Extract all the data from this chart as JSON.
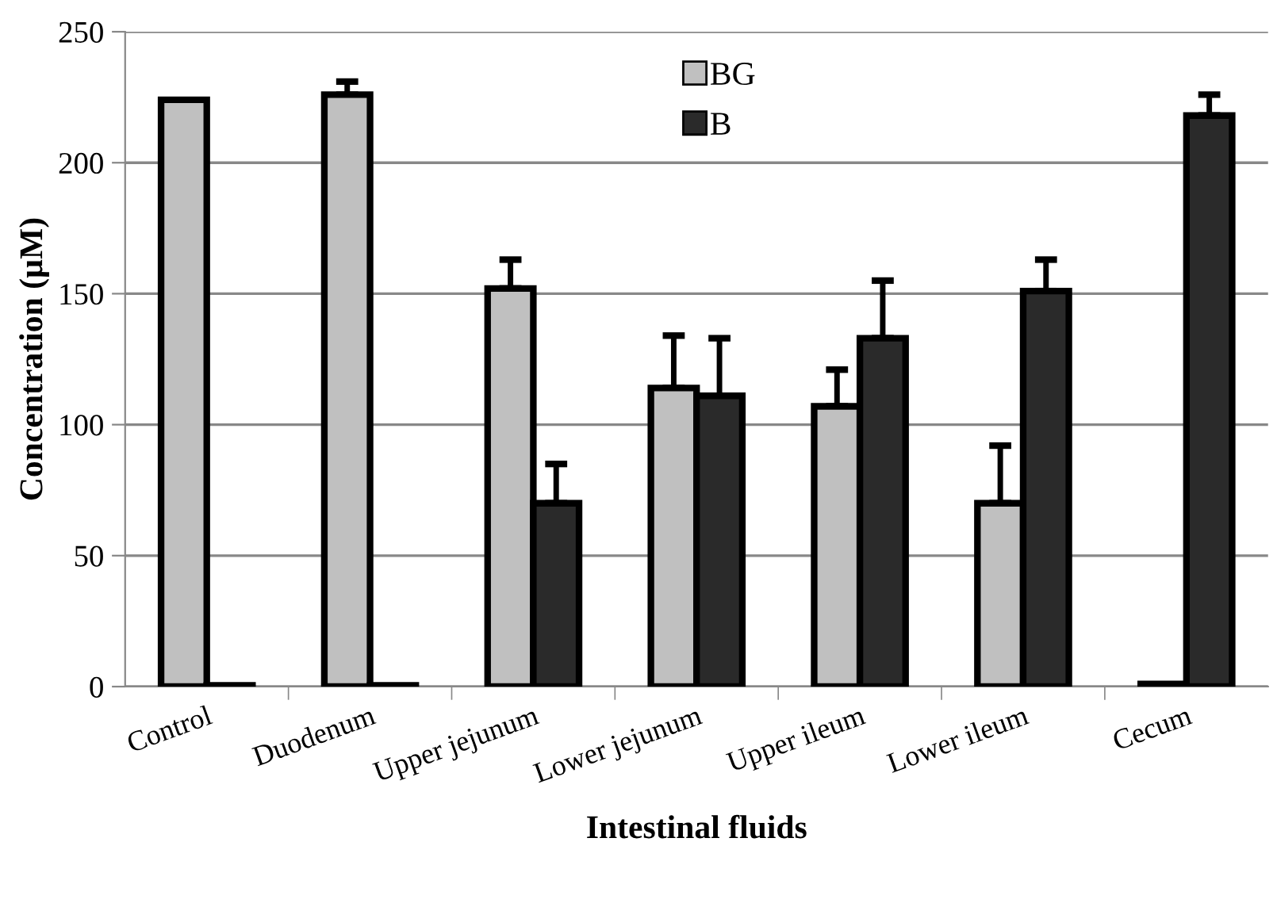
{
  "chart_data": {
    "type": "bar",
    "xlabel": "Intestinal fluids",
    "ylabel": "Concentration (µM)",
    "categories": [
      "Control",
      "Duodenum",
      "Upper jejunum",
      "Lower jejunum",
      "Upper ileum",
      "Lower ileum",
      "Cecum"
    ],
    "series": [
      {
        "name": "BG",
        "color": "#c0c0c0",
        "values": [
          224,
          226,
          152,
          114,
          107,
          70,
          1
        ],
        "errors": [
          null,
          [
            226,
            231
          ],
          [
            152,
            163
          ],
          [
            114,
            134
          ],
          [
            107,
            121
          ],
          [
            70,
            92
          ],
          null
        ]
      },
      {
        "name": "B",
        "color": "#2a2a2a",
        "values": [
          0.5,
          0.5,
          70,
          111,
          133,
          151,
          218
        ],
        "errors": [
          null,
          null,
          [
            70,
            85
          ],
          [
            111,
            133
          ],
          [
            133,
            155
          ],
          [
            151,
            163
          ],
          [
            218,
            226
          ]
        ]
      }
    ],
    "ylim": [
      0,
      250
    ],
    "yticks": [
      0,
      50,
      100,
      150,
      200,
      250
    ],
    "grid": "y",
    "legend": "top"
  }
}
